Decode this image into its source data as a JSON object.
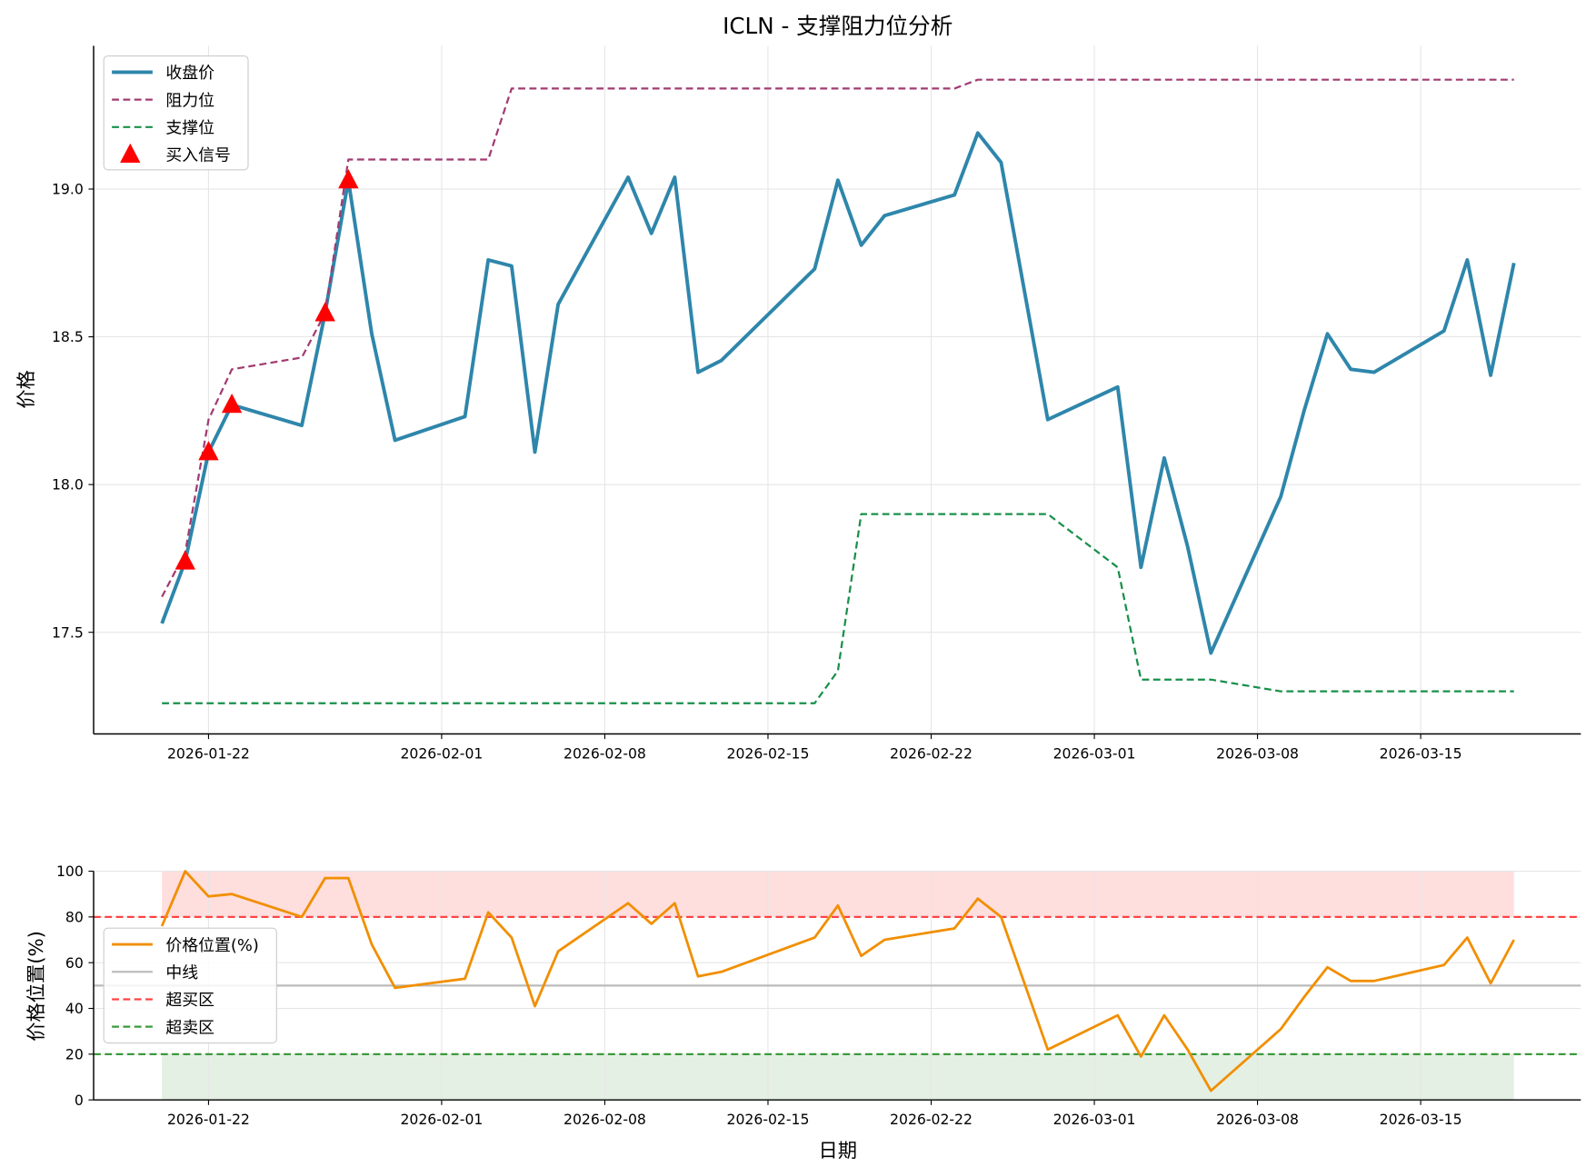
{
  "chart_data": [
    {
      "type": "line",
      "title": "ICLN - 支撑阻力位分析",
      "xlabel": "",
      "ylabel": "价格",
      "ylim": [
        17.156,
        19.485
      ],
      "yticks": [
        "17.5",
        "18.0",
        "18.5",
        "19.0"
      ],
      "ytick_values": [
        17.5,
        18.0,
        18.5,
        19.0
      ],
      "xticks": [
        "2026-01-22",
        "2026-02-01",
        "2026-02-08",
        "2026-02-15",
        "2026-02-22",
        "2026-03-01",
        "2026-03-08",
        "2026-03-15"
      ],
      "grid": true,
      "legend_position": "top-left",
      "x": [
        "2026-01-20",
        "2026-01-21",
        "2026-01-22",
        "2026-01-23",
        "2026-01-26",
        "2026-01-27",
        "2026-01-28",
        "2026-01-29",
        "2026-01-30",
        "2026-02-02",
        "2026-02-03",
        "2026-02-04",
        "2026-02-05",
        "2026-02-06",
        "2026-02-09",
        "2026-02-10",
        "2026-02-11",
        "2026-02-12",
        "2026-02-13",
        "2026-02-17",
        "2026-02-18",
        "2026-02-19",
        "2026-02-20",
        "2026-02-23",
        "2026-02-24",
        "2026-02-25",
        "2026-02-27",
        "2026-03-02",
        "2026-03-03",
        "2026-03-04",
        "2026-03-05",
        "2026-03-06",
        "2026-03-09",
        "2026-03-10",
        "2026-03-11",
        "2026-03-12",
        "2026-03-13",
        "2026-03-16",
        "2026-03-17",
        "2026-03-18",
        "2026-03-19"
      ],
      "series": [
        {
          "name": "收盘价",
          "color": "#2e86ab",
          "style": "solid",
          "values": [
            17.53,
            17.74,
            18.11,
            18.27,
            18.2,
            18.58,
            19.03,
            18.51,
            18.15,
            18.23,
            18.76,
            18.74,
            18.11,
            18.61,
            19.04,
            18.85,
            19.04,
            18.38,
            18.42,
            18.73,
            19.03,
            18.81,
            18.91,
            18.98,
            19.19,
            19.09,
            18.22,
            18.33,
            17.72,
            18.09,
            17.79,
            17.43,
            17.96,
            18.25,
            18.51,
            18.39,
            18.38,
            18.52,
            18.76,
            18.37,
            18.75
          ]
        },
        {
          "name": "阻力位",
          "color": "#a23b72",
          "style": "dashed",
          "values": [
            17.62,
            17.77,
            18.22,
            18.39,
            18.43,
            18.58,
            19.1,
            19.1,
            19.1,
            19.1,
            19.1,
            19.34,
            19.34,
            19.34,
            19.34,
            19.34,
            19.34,
            19.34,
            19.34,
            19.34,
            19.34,
            19.34,
            19.34,
            19.34,
            19.37,
            19.37,
            19.37,
            19.37,
            19.37,
            19.37,
            19.37,
            19.37,
            19.37,
            19.37,
            19.37,
            19.37,
            19.37,
            19.37,
            19.37,
            19.37,
            19.37
          ]
        },
        {
          "name": "支撑位",
          "color": "#18904a",
          "style": "dashed",
          "values": [
            17.26,
            17.26,
            17.26,
            17.26,
            17.26,
            17.26,
            17.26,
            17.26,
            17.26,
            17.26,
            17.26,
            17.26,
            17.26,
            17.26,
            17.26,
            17.26,
            17.26,
            17.26,
            17.26,
            17.26,
            17.37,
            17.9,
            17.9,
            17.9,
            17.9,
            17.9,
            17.9,
            17.72,
            17.34,
            17.34,
            17.34,
            17.34,
            17.3,
            17.3,
            17.3,
            17.3,
            17.3,
            17.3,
            17.3,
            17.3,
            17.3
          ]
        }
      ],
      "signals": {
        "name": "买入信号",
        "color": "#ff0000",
        "x": [
          "2026-01-21",
          "2026-01-22",
          "2026-01-23",
          "2026-01-27",
          "2026-01-28"
        ],
        "values": [
          17.74,
          18.11,
          18.27,
          18.58,
          19.03
        ]
      }
    },
    {
      "type": "line",
      "xlabel": "日期",
      "ylabel": "价格位置(%)",
      "ylim": [
        0,
        100
      ],
      "yticks": [
        "0",
        "20",
        "40",
        "60",
        "80",
        "100"
      ],
      "ytick_values": [
        0,
        20,
        40,
        60,
        80,
        100
      ],
      "xticks": [
        "2026-01-22",
        "2026-02-01",
        "2026-02-08",
        "2026-02-15",
        "2026-02-22",
        "2026-03-01",
        "2026-03-08",
        "2026-03-15"
      ],
      "grid": true,
      "legend_position": "center-left",
      "series": [
        {
          "name": "价格位置(%)",
          "color": "#f18f01",
          "values": [
            76,
            100,
            89,
            90,
            80,
            97,
            97,
            68,
            49,
            53,
            82,
            71,
            41,
            65,
            86,
            77,
            86,
            54,
            56,
            71,
            85,
            63,
            70,
            75,
            88,
            80,
            22,
            37,
            19,
            37,
            22,
            4,
            31,
            45,
            58,
            52,
            52,
            59,
            71,
            51,
            70
          ]
        }
      ],
      "reference_lines": [
        {
          "name": "中线",
          "value": 50,
          "color": "#bbbbbb",
          "style": "solid"
        },
        {
          "name": "超买区",
          "value": 80,
          "color": "#ff4444",
          "style": "dashed"
        },
        {
          "name": "超卖区",
          "value": 20,
          "color": "#3a9a3a",
          "style": "dashed"
        }
      ],
      "shaded_zones": [
        {
          "from": 80,
          "to": 100,
          "color": "#ffdede"
        },
        {
          "from": 0,
          "to": 20,
          "color": "#e4f0e4"
        }
      ]
    }
  ]
}
